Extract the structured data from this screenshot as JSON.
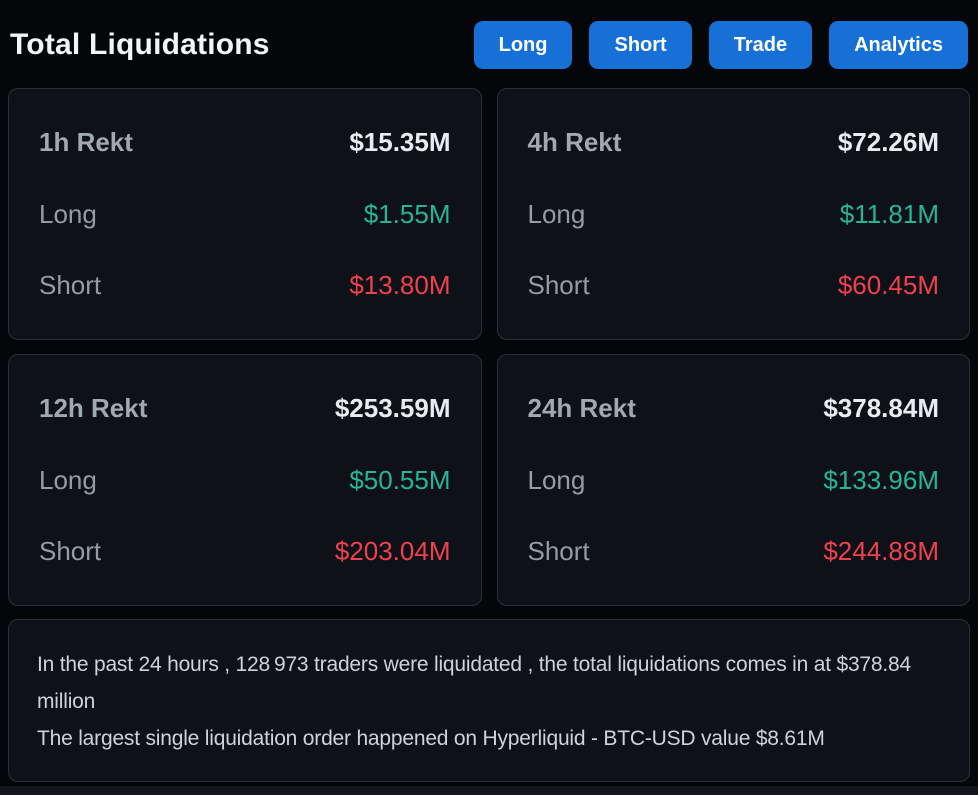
{
  "header": {
    "title": "Total Liquidations",
    "buttons": [
      {
        "label": "Long"
      },
      {
        "label": "Short"
      },
      {
        "label": "Trade"
      },
      {
        "label": "Analytics"
      }
    ]
  },
  "cards": [
    {
      "period": "1h Rekt",
      "total": "$15.35M",
      "long_label": "Long",
      "long_value": "$1.55M",
      "short_label": "Short",
      "short_value": "$13.80M"
    },
    {
      "period": "4h Rekt",
      "total": "$72.26M",
      "long_label": "Long",
      "long_value": "$11.81M",
      "short_label": "Short",
      "short_value": "$60.45M"
    },
    {
      "period": "12h Rekt",
      "total": "$253.59M",
      "long_label": "Long",
      "long_value": "$50.55M",
      "short_label": "Short",
      "short_value": "$203.04M"
    },
    {
      "period": "24h Rekt",
      "total": "$378.84M",
      "long_label": "Long",
      "long_value": "$133.96M",
      "short_label": "Short",
      "short_value": "$244.88M"
    }
  ],
  "summary": {
    "line1": "In the past 24 hours , 128 973 traders were liquidated , the total liquidations comes in at $378.84 million",
    "line2": "The largest single liquidation order happened on Hyperliquid - BTC-USD value $8.61M"
  },
  "colors": {
    "accent_blue": "#1670d6",
    "long_green": "#2ab496",
    "short_red": "#ef414e",
    "card_background": "#0e1117",
    "page_background": "#04060a"
  }
}
